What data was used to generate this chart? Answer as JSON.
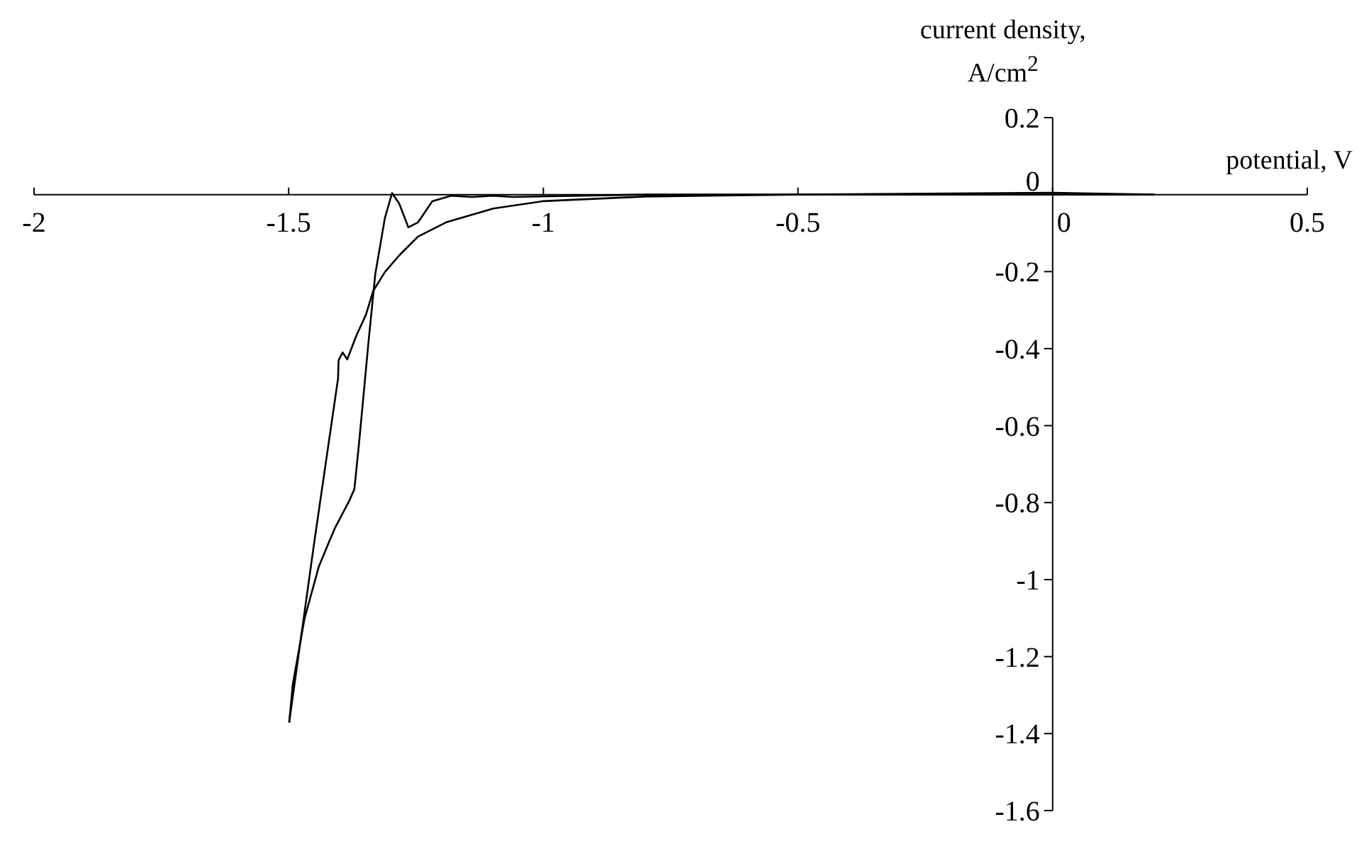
{
  "chart_data": {
    "type": "line",
    "xlabel": "potential, V",
    "ylabel": "current density, A/cm$^{2}$",
    "xlim": [
      -2,
      0.5
    ],
    "ylim": [
      -1.6,
      0.2
    ],
    "xticks": [
      -2,
      -1.5,
      -1,
      -0.5,
      0,
      0.5
    ],
    "yticks": [
      0.2,
      0,
      -0.2,
      -0.4,
      -0.6,
      -0.8,
      -1,
      -1.2,
      -1.4,
      -1.6
    ],
    "series": [
      {
        "color": "#000000",
        "x": [
          0.2,
          0,
          -0.5,
          -0.8,
          -1,
          -1.098,
          -1.191,
          -1.246,
          -1.283,
          -1.311,
          -1.334,
          -1.348,
          -1.367,
          -1.385,
          -1.394,
          -1.402,
          -1.403,
          -1.45,
          -1.499
        ],
        "values": [
          0,
          0,
          0,
          -0.005,
          -0.017,
          -0.036,
          -0.072,
          -0.109,
          -0.158,
          -0.201,
          -0.25,
          -0.311,
          -0.366,
          -0.428,
          -0.41,
          -0.43,
          -0.477,
          -0.905,
          -1.371
        ]
      },
      {
        "color": "#000000",
        "x": [
          -1.499,
          -1.492,
          -1.469,
          -1.441,
          -1.422,
          -1.408,
          -1.381,
          -1.371,
          -1.362,
          -1.343,
          -1.33,
          -1.311,
          -1.297,
          -1.283,
          -1.265,
          -1.246,
          -1.218,
          -1.181,
          -1.14,
          -1.098,
          -1.06,
          -0.8,
          -0.5,
          0,
          0.2
        ],
        "values": [
          -1.371,
          -1.273,
          -1.102,
          -0.967,
          -0.906,
          -0.863,
          -0.795,
          -0.765,
          -0.648,
          -0.379,
          -0.207,
          -0.06,
          0.004,
          -0.023,
          -0.085,
          -0.072,
          -0.017,
          -0.003,
          -0.006,
          -0.003,
          -0.006,
          0,
          0,
          0.005,
          0
        ]
      }
    ]
  }
}
